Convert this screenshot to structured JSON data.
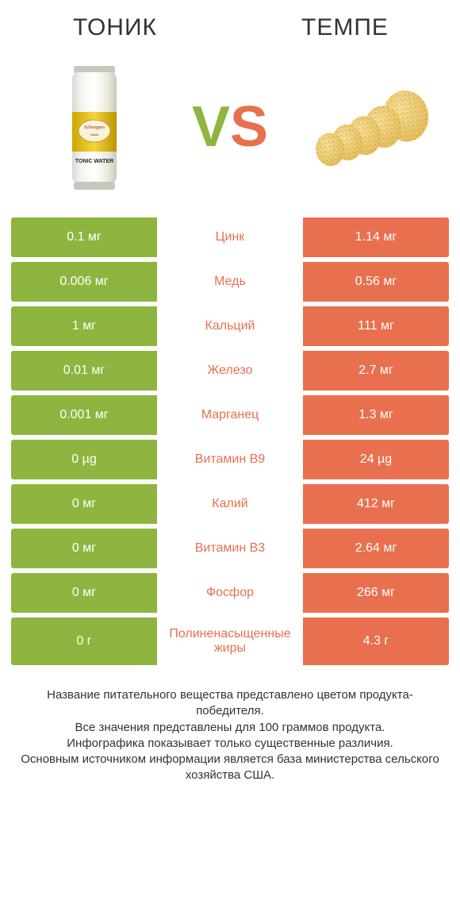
{
  "colors": {
    "left": "#8eb53f",
    "right": "#e8704f",
    "mid_text_left": "#8eb53f",
    "mid_text_right": "#e8704f",
    "vs_v": "#8eb53f",
    "vs_s": "#e8704f",
    "header_text": "#333333",
    "body_bg": "#ffffff"
  },
  "header": {
    "left": "ТОНИК",
    "right": "ТЕМПЕ"
  },
  "vs": {
    "v": "V",
    "s": "S"
  },
  "rows": [
    {
      "left": "0.1 мг",
      "mid": "Цинк",
      "right": "1.14 мг",
      "winner": "right"
    },
    {
      "left": "0.006 мг",
      "mid": "Медь",
      "right": "0.56 мг",
      "winner": "right"
    },
    {
      "left": "1 мг",
      "mid": "Кальций",
      "right": "111 мг",
      "winner": "right"
    },
    {
      "left": "0.01 мг",
      "mid": "Железо",
      "right": "2.7 мг",
      "winner": "right"
    },
    {
      "left": "0.001 мг",
      "mid": "Марганец",
      "right": "1.3 мг",
      "winner": "right"
    },
    {
      "left": "0 µg",
      "mid": "Витамин B9",
      "right": "24 µg",
      "winner": "right"
    },
    {
      "left": "0 мг",
      "mid": "Калий",
      "right": "412 мг",
      "winner": "right"
    },
    {
      "left": "0 мг",
      "mid": "Витамин B3",
      "right": "2.64 мг",
      "winner": "right"
    },
    {
      "left": "0 мг",
      "mid": "Фосфор",
      "right": "266 мг",
      "winner": "right"
    },
    {
      "left": "0 г",
      "mid": "Полиненасыщенные жиры",
      "right": "4.3 г",
      "winner": "right",
      "tall": true
    }
  ],
  "footer": "Название питательного вещества представлено цветом продукта-победителя.\nВсе значения представлены для 100 граммов продукта.\nИнфографика показывает только существенные различия.\nОсновным источником информации является база министерства сельского хозяйства США."
}
